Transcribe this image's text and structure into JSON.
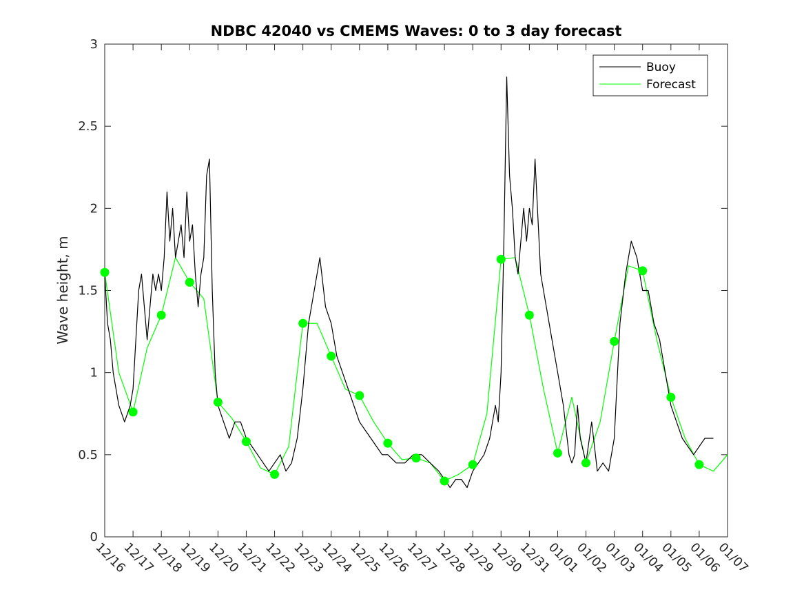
{
  "chart_data": {
    "type": "line",
    "title": "NDBC 42040 vs CMEMS Waves: 0 to 3 day forecast",
    "xlabel": "",
    "ylabel": "Wave height, m",
    "ylim": [
      0,
      3
    ],
    "xlim": [
      0,
      22
    ],
    "yticks": [
      0,
      0.5,
      1,
      1.5,
      2,
      2.5,
      3
    ],
    "ytick_labels": [
      "0",
      "0.5",
      "1",
      "1.5",
      "2",
      "2.5",
      "3"
    ],
    "xticks": [
      0,
      1,
      2,
      3,
      4,
      5,
      6,
      7,
      8,
      9,
      10,
      11,
      12,
      13,
      14,
      15,
      16,
      17,
      18,
      19,
      20,
      21,
      22
    ],
    "xtick_labels": [
      "12/16",
      "12/17",
      "12/18",
      "12/19",
      "12/20",
      "12/21",
      "12/22",
      "12/23",
      "12/24",
      "12/25",
      "12/26",
      "12/27",
      "12/28",
      "12/29",
      "12/30",
      "12/31",
      "01/01",
      "01/02",
      "01/03",
      "01/04",
      "01/05",
      "01/06",
      "01/07"
    ],
    "legend": {
      "position": "top-right",
      "entries": [
        "Buoy",
        "Forecast"
      ]
    },
    "colors": {
      "buoy": "#000000",
      "forecast": "#00ff00"
    },
    "series": [
      {
        "name": "Buoy",
        "x": [
          0,
          0.1,
          0.2,
          0.3,
          0.4,
          0.5,
          0.6,
          0.7,
          0.8,
          0.9,
          1.0,
          1.1,
          1.2,
          1.3,
          1.4,
          1.5,
          1.6,
          1.7,
          1.8,
          1.9,
          2.0,
          2.1,
          2.2,
          2.3,
          2.4,
          2.5,
          2.6,
          2.7,
          2.8,
          2.9,
          3.0,
          3.1,
          3.2,
          3.3,
          3.4,
          3.5,
          3.6,
          3.7,
          3.8,
          3.9,
          4.0,
          4.2,
          4.4,
          4.6,
          4.8,
          5.0,
          5.2,
          5.4,
          5.6,
          5.8,
          6.0,
          6.2,
          6.4,
          6.6,
          6.8,
          7.0,
          7.2,
          7.4,
          7.6,
          7.8,
          8.0,
          8.2,
          8.4,
          8.6,
          8.8,
          9.0,
          9.2,
          9.4,
          9.6,
          9.8,
          10.0,
          10.3,
          10.6,
          10.9,
          11.2,
          11.5,
          11.8,
          12.0,
          12.2,
          12.4,
          12.6,
          12.8,
          13.0,
          13.2,
          13.4,
          13.6,
          13.7,
          13.8,
          13.9,
          14.0,
          14.1,
          14.2,
          14.3,
          14.4,
          14.5,
          14.6,
          14.7,
          14.8,
          14.9,
          15.0,
          15.1,
          15.2,
          15.4,
          15.6,
          15.8,
          16.0,
          16.2,
          16.4,
          16.5,
          16.6,
          16.7,
          16.8,
          17.0,
          17.2,
          17.4,
          17.6,
          17.8,
          18.0,
          18.2,
          18.4,
          18.6,
          18.8,
          19.0,
          19.2,
          19.4,
          19.6,
          19.8,
          20.0,
          20.2,
          20.4,
          20.6,
          20.8,
          21.0,
          21.2,
          21.4,
          21.5
        ],
        "y": [
          1.6,
          1.3,
          1.2,
          1.0,
          0.9,
          0.8,
          0.75,
          0.7,
          0.75,
          0.8,
          0.9,
          1.2,
          1.5,
          1.6,
          1.4,
          1.2,
          1.4,
          1.6,
          1.5,
          1.6,
          1.5,
          1.7,
          2.1,
          1.8,
          2.0,
          1.7,
          1.8,
          1.9,
          1.7,
          2.1,
          1.8,
          1.9,
          1.6,
          1.4,
          1.6,
          1.7,
          2.2,
          2.3,
          1.5,
          1.0,
          0.8,
          0.7,
          0.6,
          0.7,
          0.7,
          0.6,
          0.55,
          0.5,
          0.45,
          0.4,
          0.45,
          0.5,
          0.4,
          0.45,
          0.6,
          0.9,
          1.3,
          1.5,
          1.7,
          1.4,
          1.3,
          1.1,
          1.0,
          0.9,
          0.8,
          0.7,
          0.65,
          0.6,
          0.55,
          0.5,
          0.5,
          0.45,
          0.45,
          0.5,
          0.5,
          0.45,
          0.4,
          0.35,
          0.3,
          0.35,
          0.35,
          0.3,
          0.4,
          0.45,
          0.5,
          0.6,
          0.7,
          0.8,
          0.7,
          1.0,
          1.8,
          2.8,
          2.2,
          2.0,
          1.7,
          1.6,
          1.8,
          2.0,
          1.8,
          2.0,
          1.9,
          2.3,
          1.6,
          1.4,
          1.2,
          1.0,
          0.8,
          0.5,
          0.45,
          0.5,
          0.8,
          0.6,
          0.45,
          0.7,
          0.4,
          0.45,
          0.4,
          0.6,
          1.3,
          1.6,
          1.8,
          1.7,
          1.5,
          1.5,
          1.3,
          1.2,
          1.0,
          0.8,
          0.7,
          0.6,
          0.55,
          0.5,
          0.55,
          0.6,
          0.6,
          0.6
        ]
      },
      {
        "name": "Forecast",
        "x": [
          0,
          0.5,
          1.0,
          1.5,
          2.0,
          2.5,
          3.0,
          3.5,
          4.0,
          4.5,
          5.0,
          5.5,
          6.0,
          6.5,
          7.0,
          7.5,
          8.0,
          8.5,
          9.0,
          9.5,
          10.0,
          10.5,
          11.0,
          11.5,
          12.0,
          12.5,
          13.0,
          13.5,
          14.0,
          14.5,
          15.0,
          15.5,
          16.0,
          16.5,
          17.0,
          17.5,
          18.0,
          18.5,
          19.0,
          19.5,
          20.0,
          20.5,
          21.0,
          21.5,
          22.0
        ],
        "y": [
          1.61,
          1.0,
          0.76,
          1.15,
          1.35,
          1.7,
          1.55,
          1.45,
          0.82,
          0.72,
          0.58,
          0.42,
          0.38,
          0.55,
          1.3,
          1.3,
          1.1,
          0.9,
          0.86,
          0.7,
          0.57,
          0.47,
          0.48,
          0.45,
          0.34,
          0.38,
          0.44,
          0.75,
          1.69,
          1.7,
          1.35,
          0.9,
          0.51,
          0.85,
          0.45,
          0.7,
          1.19,
          1.65,
          1.62,
          1.2,
          0.85,
          0.6,
          0.44,
          0.4,
          0.5
        ]
      }
    ],
    "forecast_markers": {
      "x": [
        0,
        1,
        2,
        3,
        4,
        5,
        6,
        7,
        8,
        9,
        10,
        11,
        12,
        13,
        14,
        15,
        16,
        17,
        18,
        19,
        20,
        21
      ],
      "y": [
        1.61,
        0.76,
        1.35,
        1.55,
        0.82,
        0.58,
        0.38,
        1.3,
        1.1,
        0.86,
        0.57,
        0.48,
        0.34,
        0.44,
        1.69,
        1.35,
        0.51,
        0.45,
        1.19,
        1.62,
        0.85,
        0.44
      ]
    }
  }
}
